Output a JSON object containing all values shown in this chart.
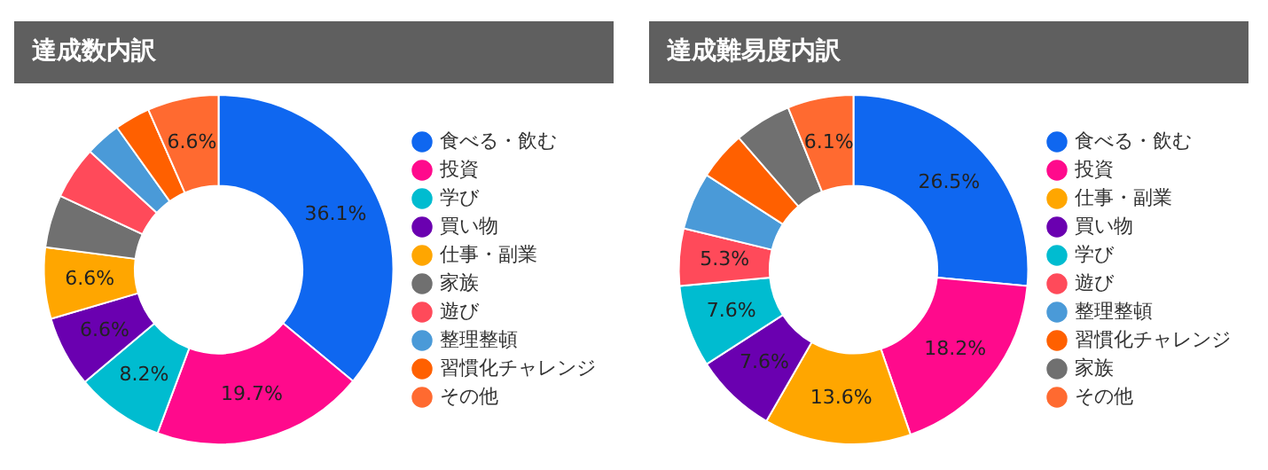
{
  "chart_data": [
    {
      "type": "donut",
      "title": "達成数内訳",
      "categories": [
        "食べる・飲む",
        "投資",
        "学び",
        "買い物",
        "仕事・副業",
        "家族",
        "遊び",
        "整理整頓",
        "習慣化チャレンジ",
        "その他"
      ],
      "values": [
        36.1,
        19.7,
        8.2,
        6.6,
        6.6,
        4.9,
        4.9,
        3.3,
        3.3,
        6.6
      ],
      "colors": [
        "#0f67f0",
        "#ff0a8c",
        "#00bcd0",
        "#6a00b0",
        "#ffa600",
        "#707070",
        "#ff4a5a",
        "#4a9ad8",
        "#ff6000",
        "#ff6a30"
      ],
      "value_labels": [
        "36.1%",
        "19.7%",
        "8.2%",
        "6.6%",
        "6.6%",
        null,
        null,
        null,
        null,
        "6.6%"
      ],
      "legend": "right"
    },
    {
      "type": "donut",
      "title": "達成難易度内訳",
      "categories": [
        "食べる・飲む",
        "投資",
        "仕事・副業",
        "買い物",
        "学び",
        "遊び",
        "整理整頓",
        "習慣化チャレンジ",
        "家族",
        "その他"
      ],
      "values": [
        26.5,
        18.2,
        13.6,
        7.6,
        7.6,
        5.3,
        5.3,
        4.5,
        5.3,
        6.1
      ],
      "colors": [
        "#0f67f0",
        "#ff0a8c",
        "#ffa600",
        "#6a00b0",
        "#00bcd0",
        "#ff4a5a",
        "#4a9ad8",
        "#ff6000",
        "#707070",
        "#ff6a30"
      ],
      "value_labels": [
        "26.5%",
        "18.2%",
        "13.6%",
        "7.6%",
        "7.6%",
        "5.3%",
        null,
        null,
        null,
        "6.1%"
      ],
      "legend": "right"
    }
  ]
}
